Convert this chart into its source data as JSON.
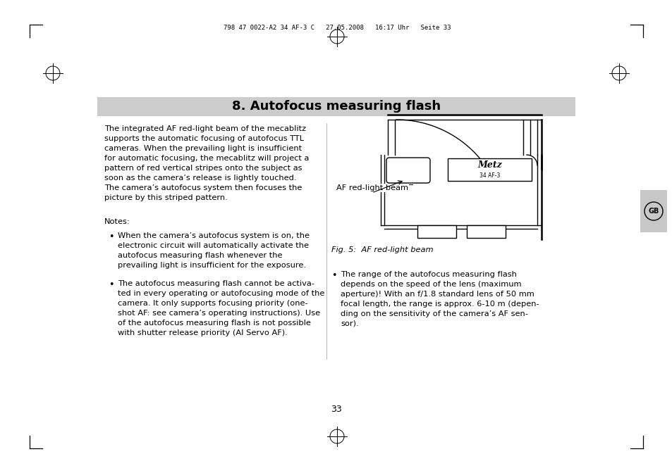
{
  "bg_color": "#ffffff",
  "header_text": "798 47 0022-A2 34 AF-3 C   27.05.2008   16:17 Uhr   Seite 33",
  "title": "8. Autofocus measuring flash",
  "title_bg": "#cccccc",
  "title_color": "#000000",
  "title_fontsize": 13,
  "body_text_left": "The integrated AF red-light beam of the mecablitz\nsupports the automatic focusing of autofocus TTL\ncameras. When the prevailing light is insufficient\nfor automatic focusing, the mecablitz will project a\npattern of red vertical stripes onto the subject as\nsoon as the camera’s release is lightly touched.\nThe camera’s autofocus system then focuses the\npicture by this striped pattern.",
  "notes_label": "Notes:",
  "bullet1_text": "When the camera’s autofocus system is on, the\nelectronic circuit will automatically activate the\nautofocus measuring flash whenever the\nprevailing light is insufficient for the exposure.",
  "bullet2_text": "The autofocus measuring flash cannot be activa-\nted in every operating or autofocusing mode of the\ncamera. It only supports focusing priority (one-\nshot AF: see camera’s operating instructions). Use\nof the autofocus measuring flash is not possible\nwith shutter release priority (AI Servo AF).",
  "bullet3_text": "The range of the autofocus measuring flash\ndepends on the speed of the lens (maximum\naperture)! With an f/1.8 standard lens of 50 mm\nfocal length, the range is approx. 6-10 m (depen-\nding on the sensitivity of the camera’s AF sen-\nsor).",
  "fig_caption": "Fig. 5:  AF red-light beam",
  "af_label": "AF red-light beam",
  "gb_label": "GB",
  "page_number": "33",
  "lc": "#000000",
  "gb_bg": "#c8c8c8",
  "body_fontsize": 8.2,
  "caption_fontsize": 8.2
}
